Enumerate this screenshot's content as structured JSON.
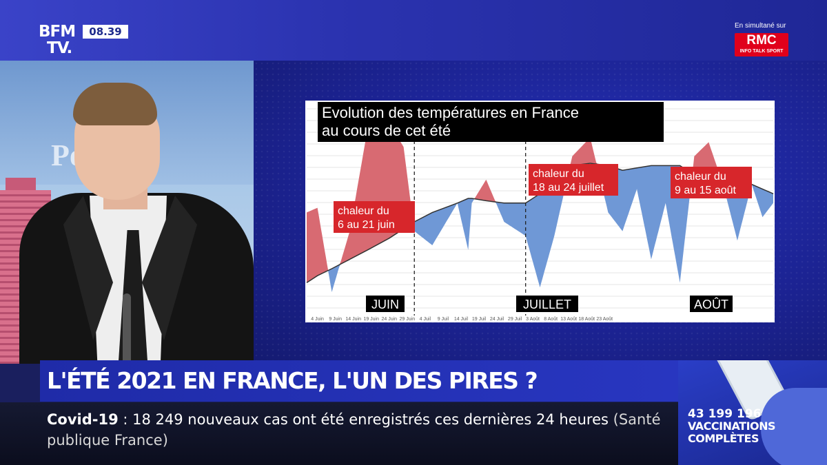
{
  "broadcast": {
    "channel_line1": "BFM",
    "channel_line2": "TV.",
    "clock": "08.39",
    "simulcast_label": "En simultané sur",
    "partner_logo": "RMC",
    "partner_tagline": "INFO TALK SPORT",
    "studio_backdrop_text": "Po",
    "colors": {
      "brand_blue": "#2836c0",
      "rmc_red": "#e0001b"
    }
  },
  "headline": "L'ÉTÉ 2021 EN FRANCE, L'UN DES PIRES ?",
  "ticker": {
    "label": "Covid-19",
    "separator": ":",
    "text": "18 249 nouveaux cas ont été enregistrés ces dernières 24 heures",
    "source": "(Santé publique France)"
  },
  "vaccination": {
    "count": "43 199 196",
    "line1": "VACCINATIONS",
    "line2": "COMPLÈTES"
  },
  "chart_data": {
    "type": "area",
    "title_line1": "Evolution des températures en France",
    "title_line2": "au cours de cet été",
    "month_labels": [
      "JUIN",
      "JUILLET",
      "AOÛT"
    ],
    "x_ticks": [
      "4 Juin",
      "9 Juin",
      "14 Juin",
      "19 Juin",
      "24 Juin",
      "29 Juin",
      "4 Juil",
      "9 Juil",
      "14 Juil",
      "19 Juil",
      "24 Juil",
      "29 Juil",
      "3 Août",
      "8 Août",
      "13 Août",
      "18 Août",
      "23 Août"
    ],
    "annotations": [
      {
        "line1": "chaleur du",
        "line2": "6 au 21 juin"
      },
      {
        "line1": "chaleur du",
        "line2": "18 au 24 juillet"
      },
      {
        "line1": "chaleur du",
        "line2": "9 au 15 août"
      }
    ],
    "colors": {
      "above_normal": "#d86a72",
      "below_normal": "#6f98d6",
      "normal_line": "#333333",
      "grid": "#e6e6e6"
    },
    "grid": true,
    "days": [
      0,
      3,
      7,
      12,
      17,
      23,
      27,
      30,
      35,
      42,
      45,
      46,
      50,
      55,
      61,
      65,
      69,
      74,
      79,
      84,
      88,
      92,
      96,
      100,
      104,
      108,
      112,
      116,
      120,
      124,
      127,
      130
    ],
    "normal": [
      7,
      8.5,
      10,
      12,
      14,
      16.5,
      18.5,
      20,
      22,
      24,
      25,
      25,
      24.5,
      24,
      24,
      26,
      29,
      32,
      32.5,
      32,
      31,
      31.5,
      32,
      32,
      32,
      30,
      28.5,
      28,
      28.5,
      28,
      27,
      26
    ],
    "observed": [
      22,
      23,
      5,
      18,
      40,
      41,
      36,
      18,
      15,
      24,
      14,
      24,
      29,
      20,
      17,
      6,
      17,
      34,
      38,
      22,
      18,
      27,
      12,
      24,
      7,
      34,
      37,
      28,
      16,
      28,
      21,
      24
    ]
  }
}
